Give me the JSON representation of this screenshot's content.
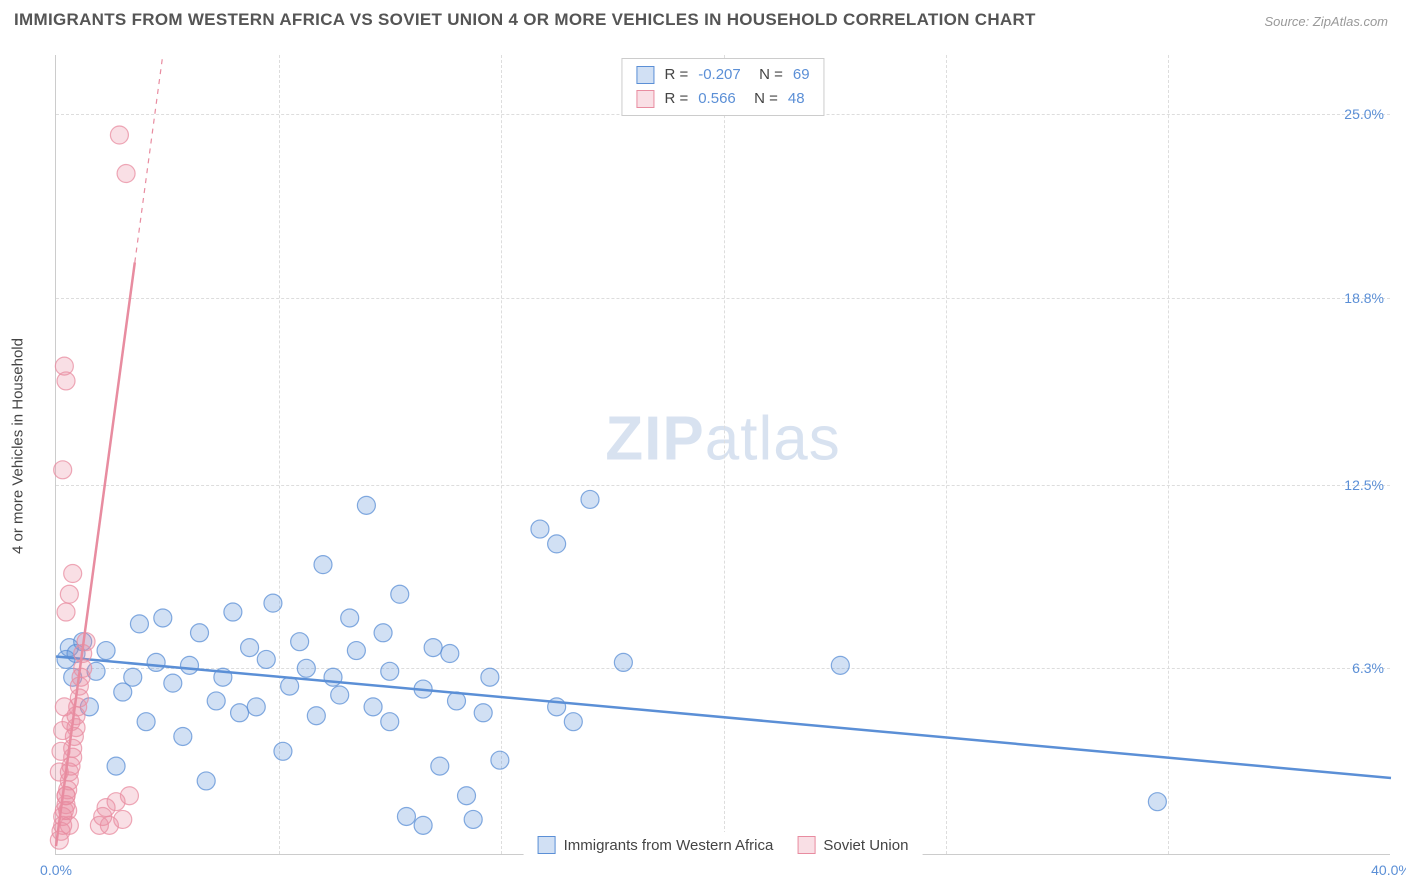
{
  "title": "IMMIGRANTS FROM WESTERN AFRICA VS SOVIET UNION 4 OR MORE VEHICLES IN HOUSEHOLD CORRELATION CHART",
  "source": "Source: ZipAtlas.com",
  "ylabel": "4 or more Vehicles in Household",
  "watermark_bold": "ZIP",
  "watermark_light": "atlas",
  "chart": {
    "type": "scatter",
    "xlim": [
      0,
      40
    ],
    "ylim": [
      0,
      27
    ],
    "xticks": [
      {
        "v": 0,
        "l": "0.0%"
      },
      {
        "v": 40,
        "l": "40.0%"
      }
    ],
    "yticks": [
      {
        "v": 6.3,
        "l": "6.3%"
      },
      {
        "v": 12.5,
        "l": "12.5%"
      },
      {
        "v": 18.8,
        "l": "18.8%"
      },
      {
        "v": 25.0,
        "l": "25.0%"
      }
    ],
    "vgrid": [
      6.67,
      13.33,
      20,
      26.67,
      33.33
    ],
    "background_color": "#ffffff",
    "grid_color": "#dddddd",
    "marker_radius": 9,
    "marker_fill_opacity": 0.28,
    "marker_stroke_opacity": 0.75,
    "line_width": 2.5,
    "series": [
      {
        "key": "wafrica",
        "label": "Immigrants from Western Africa",
        "color": "#5b8fd6",
        "R": "-0.207",
        "N": "69",
        "trend": {
          "x1": 0,
          "y1": 6.7,
          "x2": 40,
          "y2": 2.6
        },
        "points": [
          [
            0.3,
            6.6
          ],
          [
            0.4,
            7.0
          ],
          [
            0.5,
            6.0
          ],
          [
            0.6,
            6.8
          ],
          [
            0.8,
            7.2
          ],
          [
            1.0,
            5.0
          ],
          [
            1.2,
            6.2
          ],
          [
            1.5,
            6.9
          ],
          [
            1.8,
            3.0
          ],
          [
            2.0,
            5.5
          ],
          [
            2.3,
            6.0
          ],
          [
            2.5,
            7.8
          ],
          [
            2.7,
            4.5
          ],
          [
            3.0,
            6.5
          ],
          [
            3.2,
            8.0
          ],
          [
            3.5,
            5.8
          ],
          [
            3.8,
            4.0
          ],
          [
            4.0,
            6.4
          ],
          [
            4.3,
            7.5
          ],
          [
            4.5,
            2.5
          ],
          [
            4.8,
            5.2
          ],
          [
            5.0,
            6.0
          ],
          [
            5.3,
            8.2
          ],
          [
            5.5,
            4.8
          ],
          [
            5.8,
            7.0
          ],
          [
            6.0,
            5.0
          ],
          [
            6.3,
            6.6
          ],
          [
            6.5,
            8.5
          ],
          [
            6.8,
            3.5
          ],
          [
            7.0,
            5.7
          ],
          [
            7.3,
            7.2
          ],
          [
            7.5,
            6.3
          ],
          [
            7.8,
            4.7
          ],
          [
            8.0,
            9.8
          ],
          [
            8.3,
            6.0
          ],
          [
            8.5,
            5.4
          ],
          [
            8.8,
            8.0
          ],
          [
            9.0,
            6.9
          ],
          [
            9.3,
            11.8
          ],
          [
            9.5,
            5.0
          ],
          [
            9.8,
            7.5
          ],
          [
            10.0,
            6.2
          ],
          [
            10.0,
            4.5
          ],
          [
            10.3,
            8.8
          ],
          [
            10.5,
            1.3
          ],
          [
            11.0,
            5.6
          ],
          [
            11.0,
            1.0
          ],
          [
            11.3,
            7.0
          ],
          [
            11.5,
            3.0
          ],
          [
            11.8,
            6.8
          ],
          [
            12.0,
            5.2
          ],
          [
            12.3,
            2.0
          ],
          [
            12.5,
            1.2
          ],
          [
            12.8,
            4.8
          ],
          [
            13.0,
            6.0
          ],
          [
            13.3,
            3.2
          ],
          [
            14.5,
            11.0
          ],
          [
            15.0,
            10.5
          ],
          [
            15.0,
            5.0
          ],
          [
            15.5,
            4.5
          ],
          [
            16.0,
            12.0
          ],
          [
            17.0,
            6.5
          ],
          [
            23.5,
            6.4
          ],
          [
            33.0,
            1.8
          ]
        ]
      },
      {
        "key": "soviet",
        "label": "Soviet Union",
        "color": "#e88ca0",
        "R": "0.566",
        "N": "48",
        "trend": {
          "x1": 0,
          "y1": 0.3,
          "x2": 3.2,
          "y2": 27
        },
        "trend_dash_after_y": 20,
        "points": [
          [
            0.1,
            0.5
          ],
          [
            0.15,
            0.8
          ],
          [
            0.2,
            1.0
          ],
          [
            0.2,
            1.3
          ],
          [
            0.25,
            1.5
          ],
          [
            0.3,
            1.7
          ],
          [
            0.3,
            2.0
          ],
          [
            0.35,
            2.2
          ],
          [
            0.4,
            2.5
          ],
          [
            0.4,
            2.8
          ],
          [
            0.45,
            3.0
          ],
          [
            0.5,
            3.3
          ],
          [
            0.5,
            3.6
          ],
          [
            0.55,
            4.0
          ],
          [
            0.6,
            4.3
          ],
          [
            0.6,
            4.7
          ],
          [
            0.65,
            5.0
          ],
          [
            0.7,
            5.3
          ],
          [
            0.7,
            5.7
          ],
          [
            0.75,
            6.0
          ],
          [
            0.8,
            6.3
          ],
          [
            0.8,
            6.8
          ],
          [
            0.9,
            7.2
          ],
          [
            0.3,
            8.2
          ],
          [
            0.4,
            8.8
          ],
          [
            0.5,
            9.5
          ],
          [
            0.2,
            13.0
          ],
          [
            0.3,
            16.0
          ],
          [
            0.25,
            16.5
          ],
          [
            1.3,
            1.0
          ],
          [
            1.4,
            1.3
          ],
          [
            1.5,
            1.6
          ],
          [
            1.6,
            1.0
          ],
          [
            1.8,
            1.8
          ],
          [
            2.0,
            1.2
          ],
          [
            2.2,
            2.0
          ],
          [
            0.1,
            2.8
          ],
          [
            0.15,
            3.5
          ],
          [
            0.2,
            4.2
          ],
          [
            0.25,
            5.0
          ],
          [
            0.3,
            2.0
          ],
          [
            0.35,
            1.5
          ],
          [
            0.4,
            1.0
          ],
          [
            0.45,
            4.5
          ],
          [
            1.9,
            24.3
          ],
          [
            2.1,
            23.0
          ]
        ]
      }
    ]
  }
}
